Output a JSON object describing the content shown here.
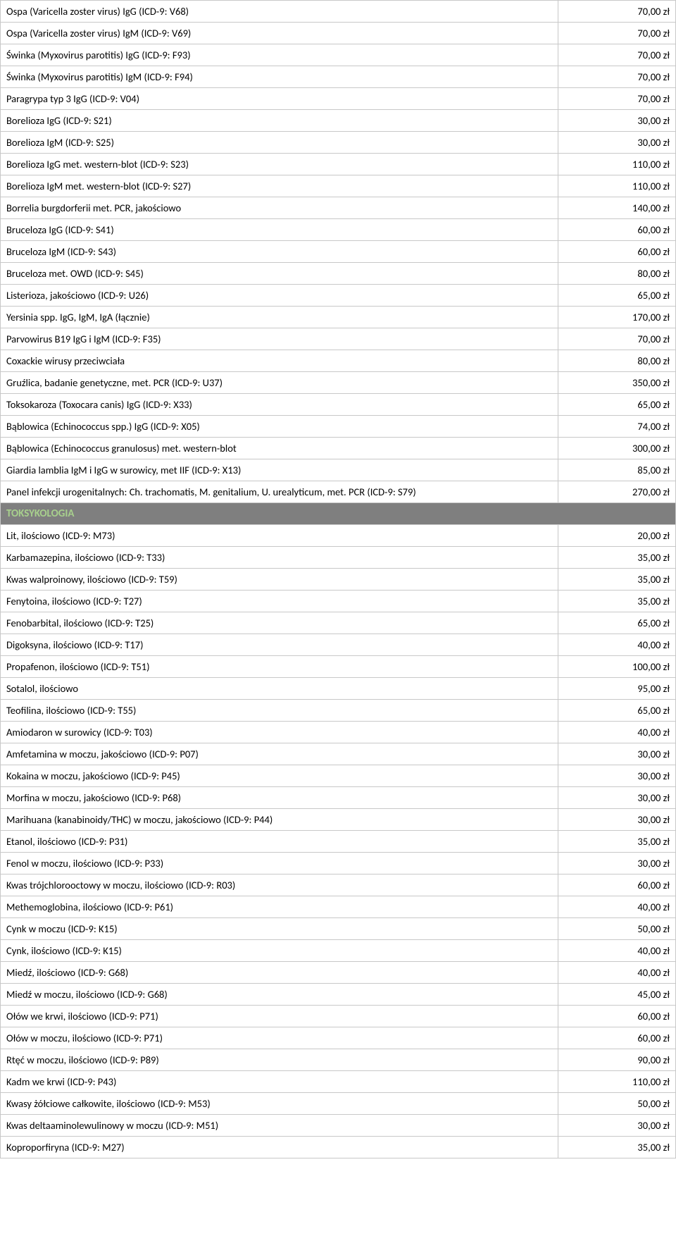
{
  "rows": [
    {
      "label": "Ospa (Varicella zoster virus) IgG (ICD-9: V68)",
      "price": "70,00 zł"
    },
    {
      "label": "Ospa (Varicella zoster virus) IgM (ICD-9: V69)",
      "price": "70,00 zł"
    },
    {
      "label": "Świnka (Myxovirus parotitis) IgG (ICD-9: F93)",
      "price": "70,00 zł"
    },
    {
      "label": "Świnka (Myxovirus parotitis) IgM (ICD-9: F94)",
      "price": "70,00 zł"
    },
    {
      "label": "Paragrypa typ 3 IgG (ICD-9: V04)",
      "price": "70,00 zł"
    },
    {
      "label": "Borelioza IgG (ICD-9: S21)",
      "price": "30,00 zł"
    },
    {
      "label": "Borelioza IgM (ICD-9: S25)",
      "price": "30,00 zł"
    },
    {
      "label": "Borelioza IgG met. western-blot (ICD-9: S23)",
      "price": "110,00 zł"
    },
    {
      "label": "Borelioza IgM met. western-blot (ICD-9: S27)",
      "price": "110,00 zł"
    },
    {
      "label": "Borrelia burgdorferii met. PCR, jakościowo",
      "price": "140,00 zł"
    },
    {
      "label": "Bruceloza IgG (ICD-9: S41)",
      "price": "60,00 zł"
    },
    {
      "label": "Bruceloza IgM (ICD-9: S43)",
      "price": "60,00 zł"
    },
    {
      "label": "Bruceloza met. OWD  (ICD-9: S45)",
      "price": "80,00 zł"
    },
    {
      "label": "Listerioza, jakościowo (ICD-9: U26)",
      "price": "65,00 zł"
    },
    {
      "label": "Yersinia spp. IgG, IgM, IgA (łącznie)",
      "price": "170,00 zł"
    },
    {
      "label": "Parvowirus B19 IgG i IgM (ICD-9: F35)",
      "price": "70,00 zł"
    },
    {
      "label": "Coxackie wirusy przeciwciała",
      "price": "80,00 zł"
    },
    {
      "label": "Gruźlica, badanie genetyczne, met. PCR (ICD-9: U37)",
      "price": "350,00 zł"
    },
    {
      "label": "Toksokaroza (Toxocara canis) IgG (ICD-9: X33)",
      "price": "65,00 zł"
    },
    {
      "label": "Bąblowica (Echinococcus spp.) IgG (ICD-9: X05)",
      "price": "74,00 zł"
    },
    {
      "label": "Bąblowica (Echinococcus granulosus) met. western-blot",
      "price": "300,00 zł"
    },
    {
      "label": "Giardia lamblia IgM i IgG w surowicy, met IIF (ICD-9: X13)",
      "price": "85,00 zł"
    },
    {
      "label": "Panel infekcji urogenitalnych: Ch. trachomatis, M. genitalium, U. urealyticum, met. PCR (ICD-9: S79)",
      "price": "270,00 zł"
    },
    {
      "section": "TOKSYKOLOGIA"
    },
    {
      "label": "Lit, ilościowo (ICD-9: M73)",
      "price": "20,00 zł"
    },
    {
      "label": "Karbamazepina, ilościowo (ICD-9: T33)",
      "price": "35,00 zł"
    },
    {
      "label": "Kwas walproinowy, ilościowo (ICD-9: T59)",
      "price": "35,00 zł"
    },
    {
      "label": "Fenytoina, ilościowo (ICD-9: T27)",
      "price": "35,00 zł"
    },
    {
      "label": "Fenobarbital, ilościowo (ICD-9: T25)",
      "price": "65,00 zł"
    },
    {
      "label": "Digoksyna, ilościowo (ICD-9: T17)",
      "price": "40,00 zł"
    },
    {
      "label": "Propafenon, ilościowo (ICD-9: T51)",
      "price": "100,00 zł"
    },
    {
      "label": "Sotalol, ilościowo",
      "price": "95,00 zł"
    },
    {
      "label": "Teofilina, ilościowo (ICD-9: T55)",
      "price": "65,00 zł"
    },
    {
      "label": "Amiodaron w surowicy (ICD-9: T03)",
      "price": "40,00 zł"
    },
    {
      "label": "Amfetamina w moczu, jakościowo (ICD-9: P07)",
      "price": "30,00 zł"
    },
    {
      "label": "Kokaina w moczu, jakościowo (ICD-9: P45)",
      "price": "30,00 zł"
    },
    {
      "label": "Morfina w moczu, jakościowo (ICD-9: P68)",
      "price": "30,00 zł"
    },
    {
      "label": "Marihuana (kanabinoidy/THC) w moczu, jakościowo (ICD-9: P44)",
      "price": "30,00 zł"
    },
    {
      "label": "Etanol, ilościowo (ICD-9: P31)",
      "price": "35,00 zł"
    },
    {
      "label": "Fenol w moczu, ilościowo (ICD-9: P33)",
      "price": "30,00 zł"
    },
    {
      "label": "Kwas trójchlorooctowy w moczu, ilościowo (ICD-9: R03)",
      "price": "60,00 zł"
    },
    {
      "label": "Methemoglobina, ilościowo (ICD-9: P61)",
      "price": "40,00 zł"
    },
    {
      "label": "Cynk w moczu (ICD-9: K15)",
      "price": "50,00 zł"
    },
    {
      "label": "Cynk, ilościowo (ICD-9: K15)",
      "price": "40,00 zł"
    },
    {
      "label": "Miedź, ilościowo (ICD-9: G68)",
      "price": "40,00 zł"
    },
    {
      "label": "Miedź w moczu, ilościowo (ICD-9: G68)",
      "price": "45,00 zł"
    },
    {
      "label": "Ołów we krwi, ilościowo (ICD-9: P71)",
      "price": "60,00 zł"
    },
    {
      "label": "Ołów w moczu, ilościowo (ICD-9: P71)",
      "price": "60,00 zł"
    },
    {
      "label": "Rtęć w moczu, ilościowo (ICD-9: P89)",
      "price": "90,00 zł"
    },
    {
      "label": "Kadm we krwi (ICD-9: P43)",
      "price": "110,00 zł"
    },
    {
      "label": "Kwasy żółciowe całkowite, ilościowo (ICD-9: M53)",
      "price": "50,00 zł"
    },
    {
      "label": "Kwas deltaaminolewulinowy w moczu (ICD-9: M51)",
      "price": "30,00 zł"
    },
    {
      "label": "Koproporfiryna (ICD-9: M27)",
      "price": "35,00 zł"
    }
  ]
}
